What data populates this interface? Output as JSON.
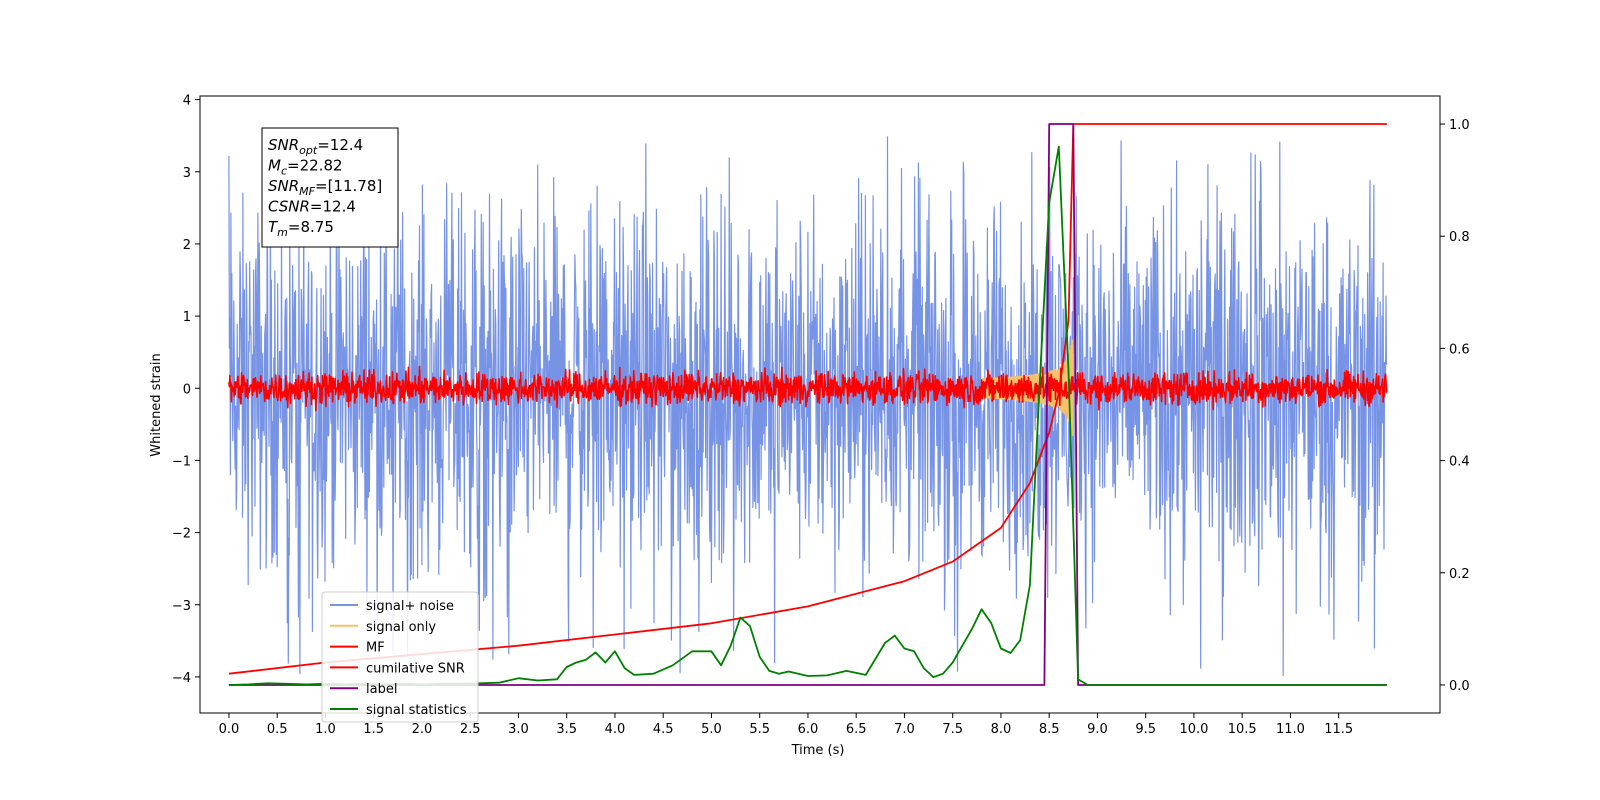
{
  "chart_data": {
    "type": "line",
    "xlabel": "Time (s)",
    "ylabel": "Whitened strain",
    "xlim": [
      -0.3,
      12.55
    ],
    "ylim": [
      -4.5,
      4.05
    ],
    "ylim_right": [
      -0.05,
      1.05
    ],
    "x_ticks": [
      "0.0",
      "0.5",
      "1.0",
      "1.5",
      "2.0",
      "2.5",
      "3.0",
      "3.5",
      "4.0",
      "4.5",
      "5.0",
      "5.5",
      "6.0",
      "6.5",
      "7.0",
      "7.5",
      "8.0",
      "8.5",
      "9.0",
      "9.5",
      "10.0",
      "10.5",
      "11.0",
      "11.5"
    ],
    "y_ticks_left": [
      "4",
      "3",
      "2",
      "1",
      "0",
      "−1",
      "−2",
      "−3",
      "−4"
    ],
    "y_ticks_right": [
      "1.0",
      "0.8",
      "0.6",
      "0.4",
      "0.2",
      "0.0"
    ],
    "grid": false,
    "legend_position": "lower-left",
    "info_box": {
      "lines": [
        {
          "name": "SNR",
          "sub": "opt",
          "value": "=12.4"
        },
        {
          "name": "M",
          "sub": "c",
          "value": "=22.82"
        },
        {
          "name": "SNR",
          "sub": "MF",
          "value": "=[11.78]"
        },
        {
          "name": "CSNR",
          "sub": "",
          "value": "=12.4"
        },
        {
          "name": "T",
          "sub": "m",
          "value": "=8.75"
        }
      ]
    },
    "series": [
      {
        "name": "signal+ noise",
        "color": "#7793e6",
        "axis": "left",
        "kind": "noise",
        "x_range": [
          0,
          12
        ],
        "envelope_low": -2.2,
        "envelope_high": 2.2,
        "spike_low": -4.0,
        "spike_high": 3.5
      },
      {
        "name": "signal only",
        "color": "#f5c26b",
        "axis": "left",
        "kind": "chirp",
        "t_merge": 8.75,
        "peak_amplitude": 1.0
      },
      {
        "name": "MF",
        "color": "#ff0000",
        "axis": "left",
        "kind": "noise",
        "x_range": [
          0,
          12
        ],
        "envelope_low": -0.2,
        "envelope_high": 0.2
      },
      {
        "name": "cumilative SNR",
        "color": "#ff0000",
        "axis": "right",
        "x": [
          0.0,
          1.0,
          2.0,
          3.0,
          4.0,
          5.0,
          6.0,
          7.0,
          7.5,
          8.0,
          8.3,
          8.5,
          8.6,
          8.7,
          8.75,
          12.0
        ],
        "y": [
          0.02,
          0.04,
          0.055,
          0.07,
          0.09,
          0.11,
          0.14,
          0.185,
          0.22,
          0.28,
          0.36,
          0.45,
          0.52,
          0.65,
          1.0,
          1.0
        ]
      },
      {
        "name": "label",
        "color": "#800080",
        "axis": "right",
        "x": [
          0.0,
          8.45,
          8.5,
          8.75,
          8.8,
          12.0
        ],
        "y": [
          0.0,
          0.0,
          1.0,
          1.0,
          0.0,
          0.0
        ]
      },
      {
        "name": "signal statistics",
        "color": "#008000",
        "axis": "right",
        "x": [
          0.0,
          0.2,
          0.4,
          0.6,
          0.8,
          1.0,
          1.2,
          1.4,
          1.6,
          1.8,
          2.0,
          2.2,
          2.4,
          2.6,
          2.8,
          3.0,
          3.2,
          3.4,
          3.5,
          3.6,
          3.7,
          3.8,
          3.9,
          4.0,
          4.1,
          4.2,
          4.4,
          4.6,
          4.8,
          5.0,
          5.1,
          5.2,
          5.3,
          5.4,
          5.5,
          5.6,
          5.7,
          5.8,
          6.0,
          6.2,
          6.4,
          6.6,
          6.8,
          6.9,
          7.0,
          7.1,
          7.2,
          7.3,
          7.4,
          7.5,
          7.6,
          7.7,
          7.8,
          7.9,
          8.0,
          8.1,
          8.2,
          8.3,
          8.4,
          8.5,
          8.6,
          8.7,
          8.8,
          8.9,
          9.0,
          10.0,
          11.0,
          12.0
        ],
        "y": [
          0.0,
          0.001,
          0.003,
          0.002,
          0.001,
          0.002,
          0.001,
          0.002,
          0.001,
          0.002,
          0.001,
          0.002,
          0.002,
          0.003,
          0.004,
          0.012,
          0.008,
          0.01,
          0.032,
          0.04,
          0.045,
          0.058,
          0.04,
          0.06,
          0.03,
          0.018,
          0.02,
          0.035,
          0.06,
          0.06,
          0.035,
          0.07,
          0.12,
          0.105,
          0.05,
          0.025,
          0.02,
          0.024,
          0.016,
          0.017,
          0.025,
          0.018,
          0.075,
          0.088,
          0.065,
          0.06,
          0.03,
          0.014,
          0.02,
          0.04,
          0.07,
          0.1,
          0.135,
          0.11,
          0.065,
          0.057,
          0.08,
          0.178,
          0.53,
          0.86,
          0.96,
          0.56,
          0.01,
          0.0,
          0.0,
          0.0,
          0.0,
          0.0
        ]
      }
    ]
  }
}
